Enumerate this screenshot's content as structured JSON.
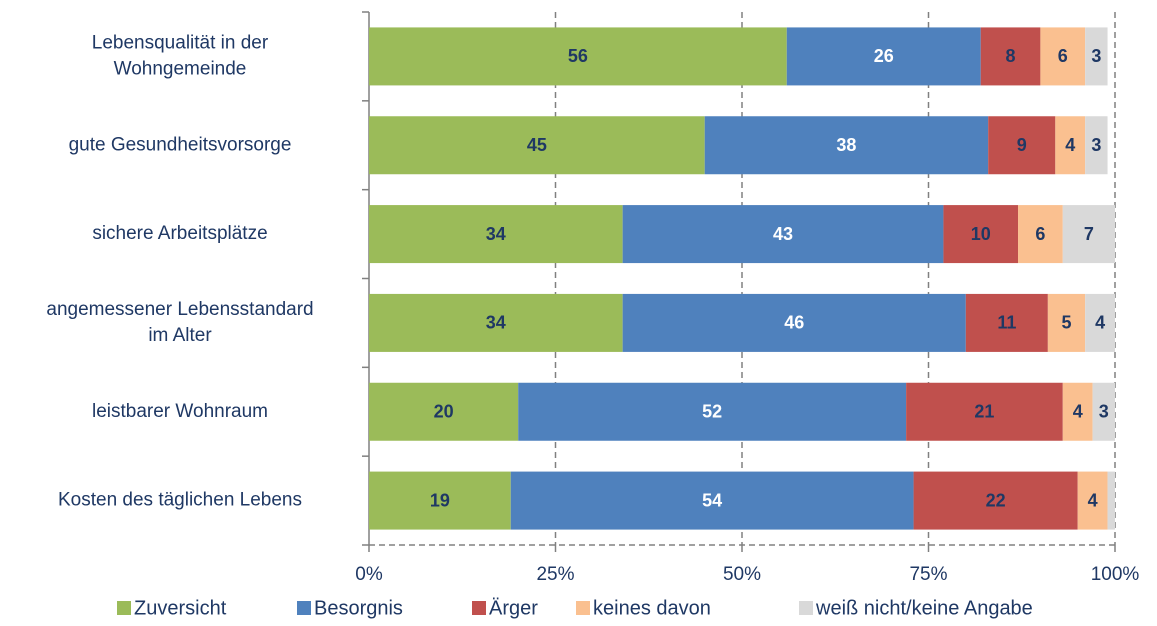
{
  "chart_data": {
    "type": "stacked_barh",
    "categories": [
      "Lebensqualität in der\nWohngemeinde",
      "gute Gesundheitsvorsorge",
      "sichere Arbeitsplätze",
      "angemessener Lebensstandard\nim Alter",
      "leistbarer Wohnraum",
      "Kosten des täglichen Lebens"
    ],
    "series": [
      {
        "name": "Zuversicht",
        "color": "#9bbb59",
        "label_color": "#1f3864",
        "values": [
          56,
          45,
          34,
          34,
          20,
          19
        ]
      },
      {
        "name": "Besorgnis",
        "color": "#4f81bd",
        "label_color": "#ffffff",
        "values": [
          26,
          38,
          43,
          46,
          52,
          54
        ]
      },
      {
        "name": "Ärger",
        "color": "#c0504d",
        "label_color": "#1f3864",
        "values": [
          8,
          9,
          10,
          11,
          21,
          22
        ]
      },
      {
        "name": "keines davon",
        "color": "#fac090",
        "label_color": "#1f3864",
        "values": [
          6,
          4,
          6,
          5,
          4,
          4
        ]
      },
      {
        "name": "weiß nicht/keine Angabe",
        "color": "#d9d9d9",
        "label_color": "#1f3864",
        "values": [
          3,
          3,
          7,
          4,
          3,
          1
        ],
        "value_labels": [
          "3",
          "3",
          "7",
          "4",
          "3",
          null
        ]
      }
    ],
    "xlim": [
      0,
      100
    ],
    "xticks": [
      {
        "value": 0,
        "label": "0%"
      },
      {
        "value": 25,
        "label": "25%"
      },
      {
        "value": 50,
        "label": "50%"
      },
      {
        "value": 75,
        "label": "75%"
      },
      {
        "value": 100,
        "label": "100%"
      }
    ],
    "grid": true,
    "legend": "bottom"
  }
}
